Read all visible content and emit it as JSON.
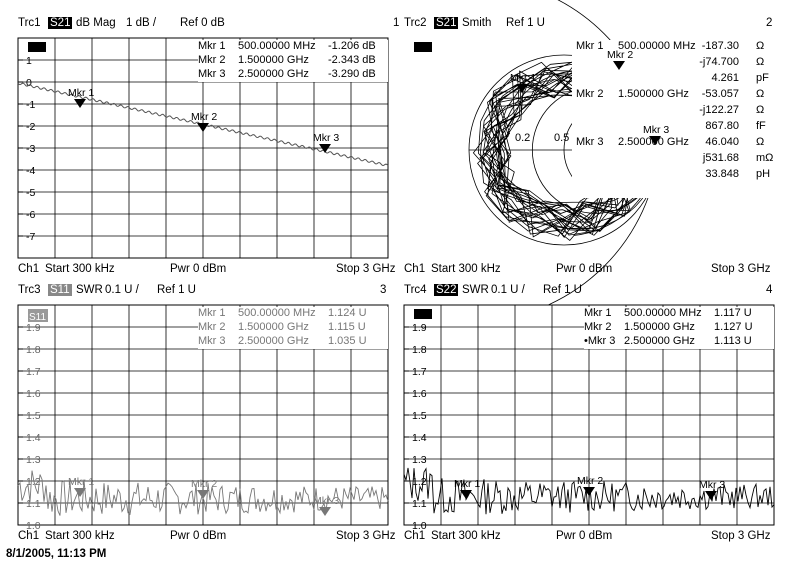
{
  "timestamp": "8/1/2005, 11:13 PM",
  "panels": [
    {
      "trace": "Trc1",
      "param": "S21",
      "param_style": "black",
      "format": "dB Mag",
      "scale": "1 dB /",
      "ref": "Ref 0 dB",
      "index": "1",
      "footer": {
        "channel": "Ch1",
        "start": "Start  300 kHz",
        "power": "Pwr  0 dBm",
        "stop": "Stop  3 GHz"
      },
      "y_ticks": [
        "1",
        "0",
        "-1",
        "-2",
        "-3",
        "-4",
        "-5",
        "-6",
        "-7"
      ],
      "markers_table": [
        {
          "name": "Mkr 1",
          "freq": "500.00000 MHz",
          "value": "-1.206 dB"
        },
        {
          "name": "Mkr 2",
          "freq": "1.500000 GHz",
          "value": "-2.343 dB"
        },
        {
          "name": "Mkr 3",
          "freq": "2.500000 GHz",
          "value": "-3.290 dB"
        }
      ],
      "marker_labels": [
        "Mkr 1",
        "Mkr 2",
        "Mkr 3"
      ]
    },
    {
      "trace": "Trc2",
      "param": "S21",
      "param_style": "black",
      "format": "Smith",
      "scale": "",
      "ref": "Ref 1 U",
      "index": "2",
      "footer": {
        "channel": "Ch1",
        "start": "Start  300 kHz",
        "power": "Pwr  0 dBm",
        "stop": "Stop  3 GHz"
      },
      "smith_labels": [
        "0.2",
        "0.5"
      ],
      "marker_labels": [
        "Mkr 2",
        "Mkr 3",
        "Mkr 1"
      ],
      "smith_table": [
        {
          "name": "Mkr 1",
          "freq": "500.00000 MHz",
          "values": [
            [
              "-187.30",
              "Ω"
            ],
            [
              "-j74.700",
              "Ω"
            ],
            [
              "4.261",
              "pF"
            ]
          ]
        },
        {
          "name": "Mkr 2",
          "freq": "1.500000 GHz",
          "values": [
            [
              "-53.057",
              "Ω"
            ],
            [
              "-j122.27",
              "Ω"
            ],
            [
              "867.80",
              "fF"
            ]
          ]
        },
        {
          "name": "Mkr 3",
          "freq": "2.500000 GHz",
          "values": [
            [
              "46.040",
              "Ω"
            ],
            [
              "j531.68",
              "mΩ"
            ],
            [
              "33.848",
              "pH"
            ]
          ]
        }
      ]
    },
    {
      "trace": "Trc3",
      "param": "S11",
      "param_style": "gray",
      "format": "SWR",
      "scale": "0.1 U /",
      "ref": "Ref 1 U",
      "index": "3",
      "footer": {
        "channel": "Ch1",
        "start": "Start  300 kHz",
        "power": "Pwr  0 dBm",
        "stop": "Stop  3 GHz"
      },
      "y_ticks": [
        "1.9",
        "1.8",
        "1.7",
        "1.6",
        "1.5",
        "1.4",
        "1.3",
        "1.2",
        "1.1",
        "1.0"
      ],
      "box_label": "S11",
      "markers_table": [
        {
          "name": "Mkr 1",
          "freq": "500.00000 MHz",
          "value": "1.124 U"
        },
        {
          "name": "Mkr 2",
          "freq": "1.500000 GHz",
          "value": "1.115 U"
        },
        {
          "name": "Mkr 3",
          "freq": "2.500000 GHz",
          "value": "1.035 U"
        }
      ],
      "marker_labels": [
        "Mkr 1",
        "Mkr 2",
        "Mkr 3"
      ]
    },
    {
      "trace": "Trc4",
      "param": "S22",
      "param_style": "black",
      "format": "SWR",
      "scale": "0.1 U /",
      "ref": "Ref 1 U",
      "index": "4",
      "footer": {
        "channel": "Ch1",
        "start": "Start  300 kHz",
        "power": "Pwr  0 dBm",
        "stop": "Stop  3 GHz"
      },
      "y_ticks": [
        "1.9",
        "1.8",
        "1.7",
        "1.6",
        "1.5",
        "1.4",
        "1.3",
        "1.2",
        "1.1",
        "1.0"
      ],
      "markers_table": [
        {
          "name": "Mkr 1",
          "freq": "500.00000 MHz",
          "value": "1.117 U"
        },
        {
          "name": "Mkr 2",
          "freq": "1.500000 GHz",
          "value": "1.127 U"
        },
        {
          "name": "•Mkr 3",
          "freq": "2.500000 GHz",
          "value": "1.113 U"
        }
      ],
      "marker_labels": [
        "Mkr 1",
        "Mkr 2",
        "Mkr 3"
      ]
    }
  ]
}
